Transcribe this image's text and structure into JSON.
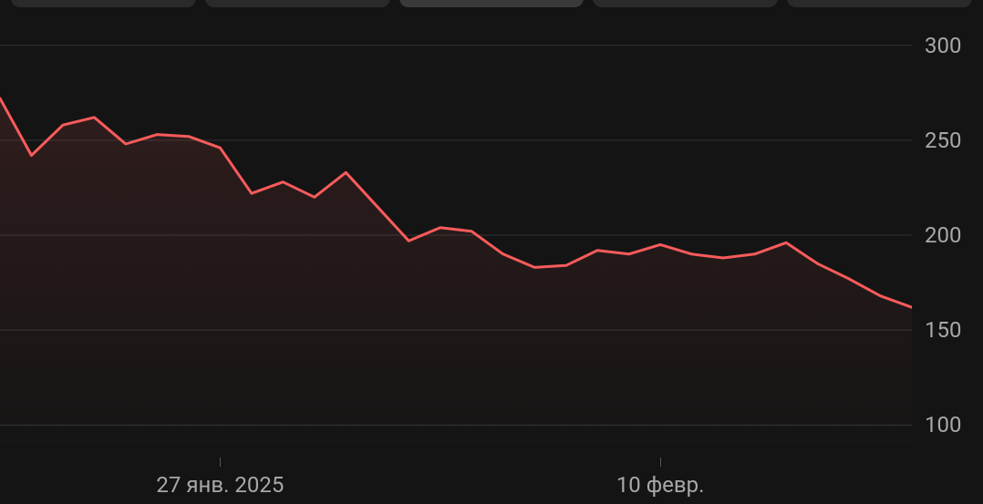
{
  "chart": {
    "type": "line",
    "background_color": "#141414",
    "grid_color": "#333333",
    "axis_label_color": "#a8a8a8",
    "axis_label_fontsize": 24,
    "line_color": "#f85b5b",
    "line_width": 3,
    "area_fill_top": "rgba(248,91,91,0.12)",
    "area_fill_bottom": "rgba(248,91,91,0.0)",
    "ylim": [
      80,
      320
    ],
    "yticks": [
      100,
      150,
      200,
      250,
      300
    ],
    "ytick_labels": [
      "100",
      "150",
      "200",
      "250",
      "300"
    ],
    "xlim": [
      0,
      29
    ],
    "xticks": [
      7,
      21
    ],
    "xtick_labels": [
      "27 янв. 2025",
      "10 февр."
    ],
    "data": [
      {
        "x": 0,
        "y": 272
      },
      {
        "x": 1,
        "y": 242
      },
      {
        "x": 2,
        "y": 258
      },
      {
        "x": 3,
        "y": 262
      },
      {
        "x": 4,
        "y": 248
      },
      {
        "x": 5,
        "y": 253
      },
      {
        "x": 6,
        "y": 252
      },
      {
        "x": 7,
        "y": 246
      },
      {
        "x": 8,
        "y": 222
      },
      {
        "x": 9,
        "y": 228
      },
      {
        "x": 10,
        "y": 220
      },
      {
        "x": 11,
        "y": 233
      },
      {
        "x": 12,
        "y": 215
      },
      {
        "x": 13,
        "y": 197
      },
      {
        "x": 14,
        "y": 204
      },
      {
        "x": 15,
        "y": 202
      },
      {
        "x": 16,
        "y": 190
      },
      {
        "x": 17,
        "y": 183
      },
      {
        "x": 18,
        "y": 184
      },
      {
        "x": 19,
        "y": 192
      },
      {
        "x": 20,
        "y": 190
      },
      {
        "x": 21,
        "y": 195
      },
      {
        "x": 22,
        "y": 190
      },
      {
        "x": 23,
        "y": 188
      },
      {
        "x": 24,
        "y": 190
      },
      {
        "x": 25,
        "y": 196
      },
      {
        "x": 26,
        "y": 185
      },
      {
        "x": 27,
        "y": 177
      },
      {
        "x": 28,
        "y": 168
      },
      {
        "x": 29,
        "y": 162
      }
    ]
  },
  "tabs": {
    "count": 5,
    "active_index": 2,
    "inactive_bg": "#2a2a2a",
    "active_bg": "#3a3a3a"
  }
}
